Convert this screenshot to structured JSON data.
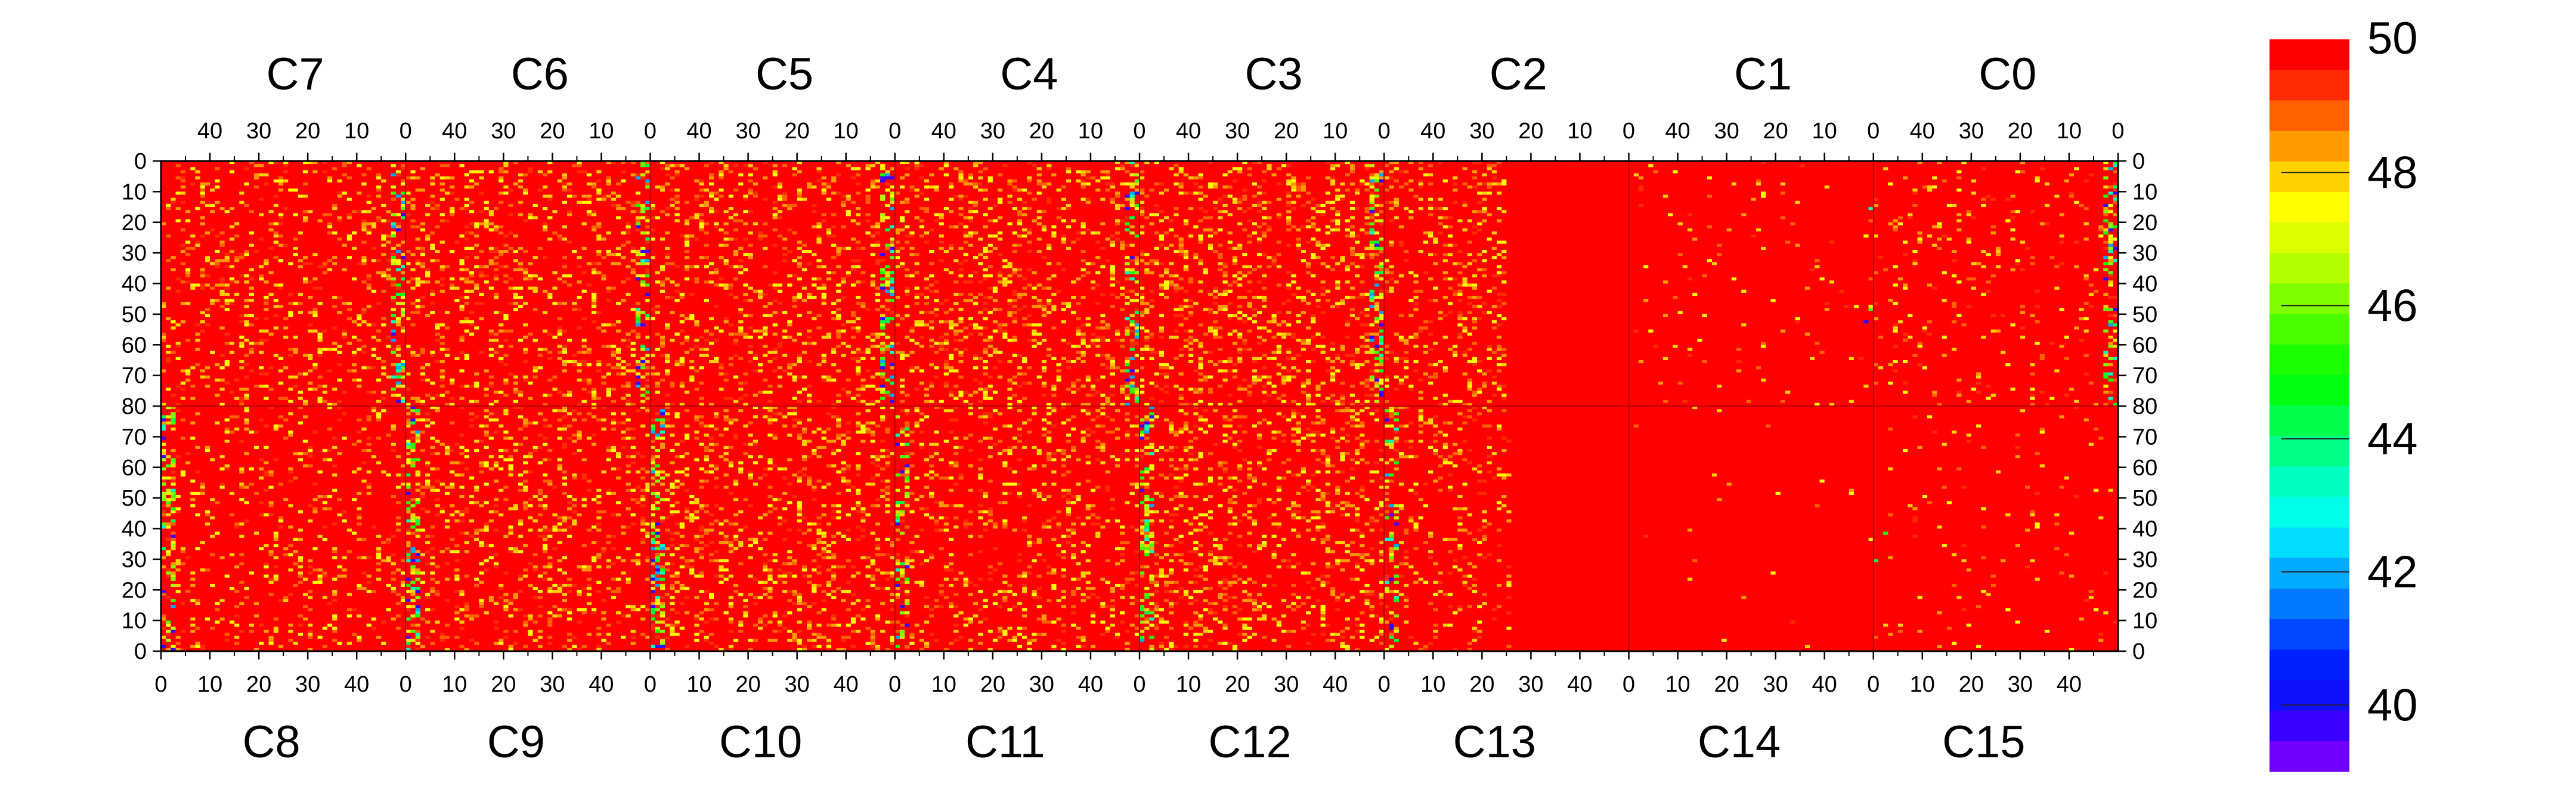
{
  "chart_data": {
    "type": "heatmap",
    "title": "",
    "xlabel": "",
    "ylabel": "",
    "channels_per_section": 50,
    "rows_per_half": 80,
    "top_sections": [
      "C7",
      "C6",
      "C5",
      "C4",
      "C3",
      "C2",
      "C1",
      "C0"
    ],
    "bottom_sections": [
      "C8",
      "C9",
      "C10",
      "C11",
      "C12",
      "C13",
      "C14",
      "C15"
    ],
    "top_x_ticks": [
      "40",
      "30",
      "20",
      "10",
      "0"
    ],
    "bottom_x_ticks": [
      "0",
      "10",
      "20",
      "30",
      "40"
    ],
    "y_ticks_top_half": [
      "0",
      "10",
      "20",
      "30",
      "40",
      "50",
      "60",
      "70",
      "80"
    ],
    "y_ticks_bottom_half": [
      "70",
      "60",
      "50",
      "40",
      "30",
      "20",
      "10",
      "0"
    ],
    "colorbar": {
      "range": [
        39,
        50
      ],
      "labels": [
        "50",
        "48",
        "46",
        "44",
        "42",
        "40"
      ],
      "colors": [
        "#ff0000",
        "#ff2a00",
        "#ff6000",
        "#ff9a00",
        "#ffd200",
        "#ffff00",
        "#ddff00",
        "#b4ff00",
        "#80ff00",
        "#4cff00",
        "#1cff00",
        "#00ff10",
        "#00ff4c",
        "#00ff88",
        "#00ffc0",
        "#00ffe8",
        "#00ddff",
        "#00aaff",
        "#0078ff",
        "#0048ff",
        "#0020ff",
        "#1010ff",
        "#3a00ff",
        "#7000ff"
      ]
    },
    "section_profile": {
      "note_hot_values": "cells mostly at 50 (saturated red); lower values concentrated near channel 0 of certain sections",
      "mean_per_section": {
        "C7": 49.6,
        "C6": 49.5,
        "C5": 49.5,
        "C4": 49.4,
        "C3": 49.3,
        "C2": 49.6,
        "C1": 49.95,
        "C0": 49.8,
        "C8": 49.7,
        "C9": 49.5,
        "C10": 49.4,
        "C11": 49.6,
        "C12": 49.5,
        "C13": 49.7,
        "C14": 49.98,
        "C15": 49.95
      }
    }
  }
}
